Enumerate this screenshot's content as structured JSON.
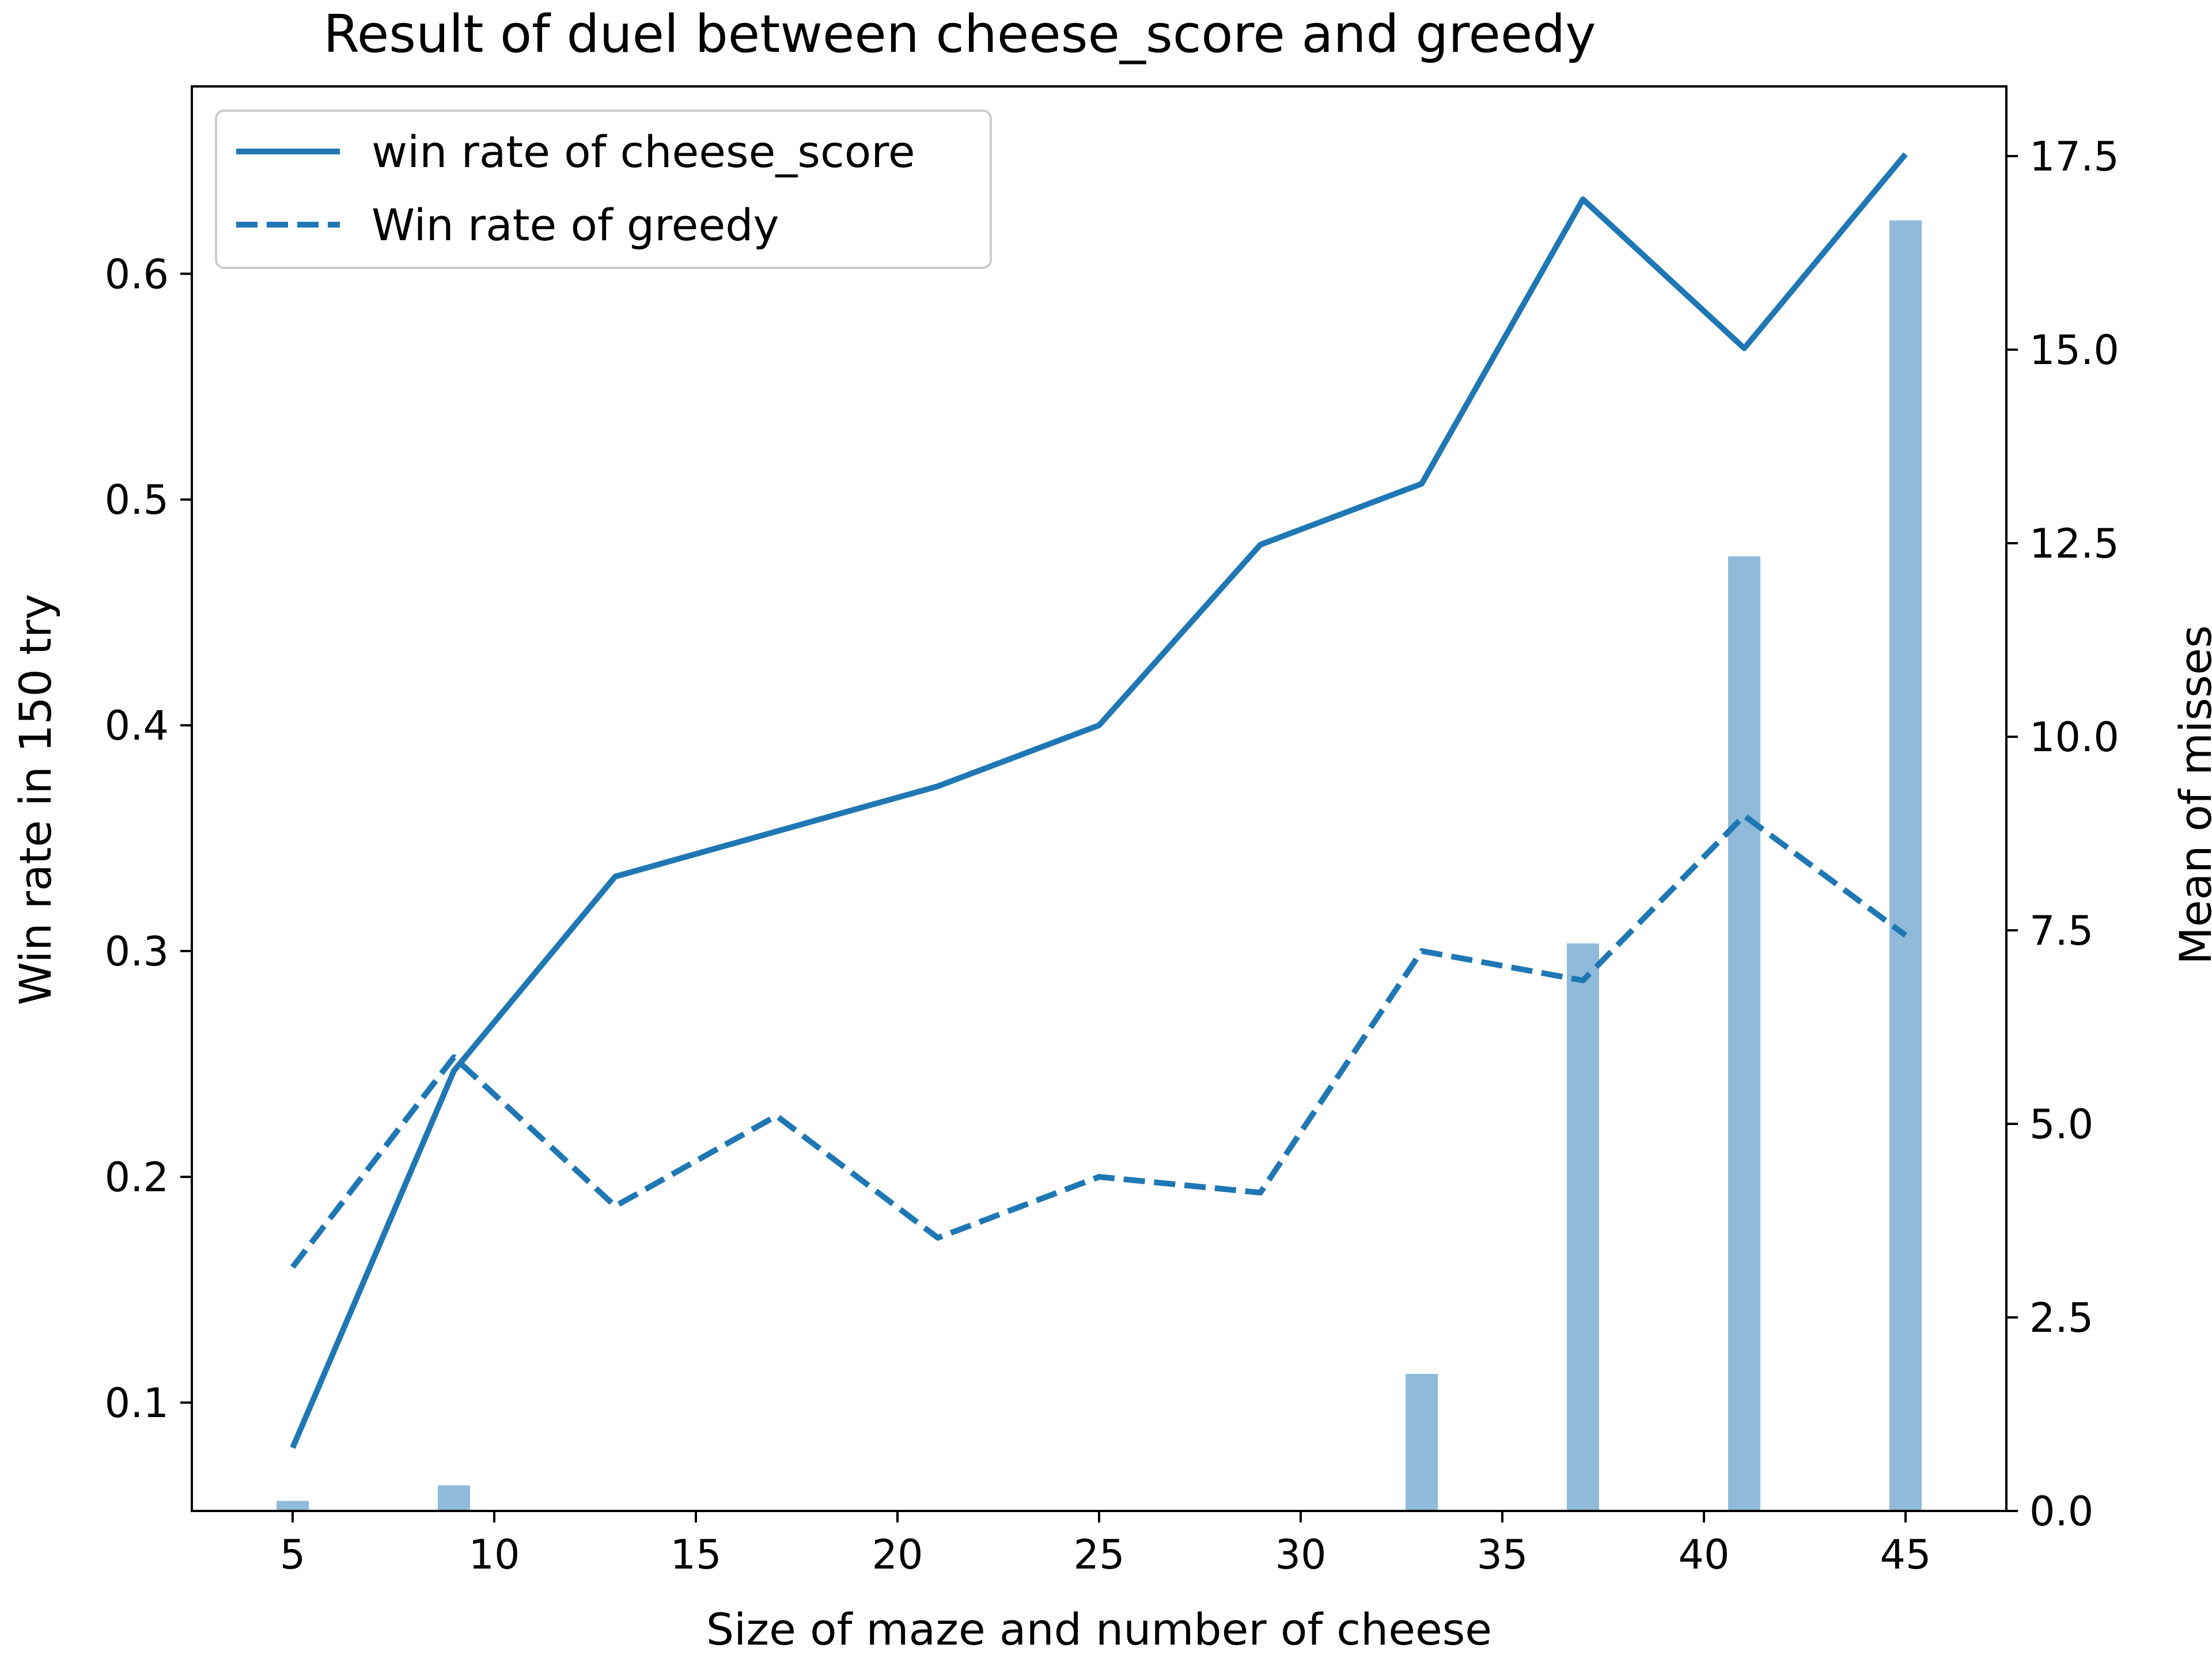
{
  "chart_data": {
    "type": "line",
    "title": "Result of duel between cheese_score and greedy",
    "xlabel": "Size of maze and number of cheese",
    "ylabel": "Win rate in 150 try",
    "y2label": "Mean of misses",
    "xlim": [
      2.5,
      47.5
    ],
    "ylim": [
      0.052,
      0.683
    ],
    "y2lim": [
      0,
      18.4
    ],
    "xticks": [
      5,
      10,
      15,
      20,
      25,
      30,
      35,
      40,
      45
    ],
    "yticks": [
      0.1,
      0.2,
      0.3,
      0.4,
      0.5,
      0.6
    ],
    "y2ticks": [
      0.0,
      2.5,
      5.0,
      7.5,
      10.0,
      12.5,
      15.0,
      17.5
    ],
    "y2tick_labels": [
      "0.0",
      "2.5",
      "5.0",
      "7.5",
      "10.0",
      "12.5",
      "15.0",
      "17.5"
    ],
    "grid": false,
    "legend_position": "upper-left",
    "colors": {
      "line": "#1f77b4",
      "bar": "#8fbada"
    },
    "series": [
      {
        "name": "win rate of cheese_score",
        "style": "solid",
        "axis": "left",
        "x": [
          5,
          9,
          13,
          17,
          21,
          25,
          29,
          33,
          37,
          41,
          45
        ],
        "values": [
          0.08,
          0.247,
          0.333,
          0.353,
          0.373,
          0.4,
          0.48,
          0.507,
          0.633,
          0.567,
          0.653
        ]
      },
      {
        "name": "Win rate of greedy",
        "style": "dashed",
        "axis": "left",
        "x": [
          5,
          9,
          13,
          17,
          21,
          25,
          29,
          33,
          37,
          41,
          45
        ],
        "values": [
          0.16,
          0.253,
          0.187,
          0.227,
          0.173,
          0.2,
          0.193,
          0.3,
          0.287,
          0.36,
          0.307
        ]
      },
      {
        "style": "bar",
        "axis": "right",
        "x": [
          5,
          9,
          13,
          17,
          21,
          25,
          29,
          33,
          37,
          41,
          45
        ],
        "values": [
          0.13,
          0.33,
          0,
          0,
          0,
          0,
          0,
          1.77,
          7.33,
          12.33,
          16.67
        ]
      }
    ]
  }
}
